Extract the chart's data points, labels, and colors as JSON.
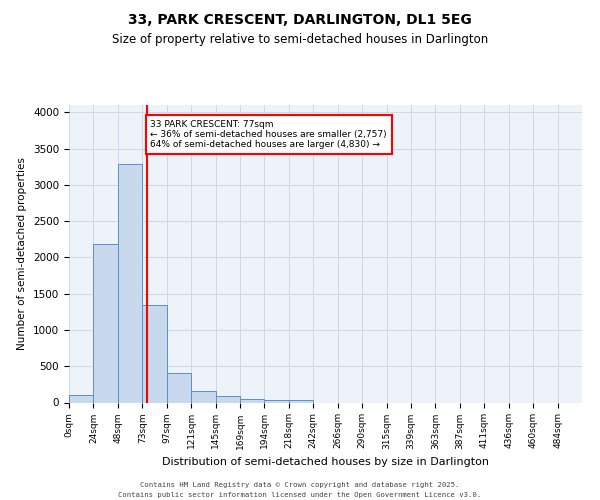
{
  "title_line1": "33, PARK CRESCENT, DARLINGTON, DL1 5EG",
  "title_line2": "Size of property relative to semi-detached houses in Darlington",
  "xlabel": "Distribution of semi-detached houses by size in Darlington",
  "ylabel": "Number of semi-detached properties",
  "bar_labels": [
    "0sqm",
    "24sqm",
    "48sqm",
    "73sqm",
    "97sqm",
    "121sqm",
    "145sqm",
    "169sqm",
    "194sqm",
    "218sqm",
    "242sqm",
    "266sqm",
    "290sqm",
    "315sqm",
    "339sqm",
    "363sqm",
    "387sqm",
    "411sqm",
    "436sqm",
    "460sqm",
    "484sqm"
  ],
  "bar_values": [
    105,
    2180,
    3290,
    1340,
    410,
    155,
    95,
    50,
    40,
    30,
    0,
    0,
    0,
    0,
    0,
    0,
    0,
    0,
    0,
    0,
    0
  ],
  "bar_color": "#c9d9ed",
  "bar_edge_color": "#5b8fc9",
  "grid_color": "#d0d8e8",
  "background_color": "#eef2f9",
  "red_line_x": 77,
  "annotation_text": "33 PARK CRESCENT: 77sqm\n← 36% of semi-detached houses are smaller (2,757)\n64% of semi-detached houses are larger (4,830) →",
  "annotation_box_color": "white",
  "annotation_box_edge": "red",
  "vline_color": "red",
  "footer_text": "Contains HM Land Registry data © Crown copyright and database right 2025.\nContains public sector information licensed under the Open Government Licence v3.0.",
  "ylim": [
    0,
    4100
  ],
  "bin_width": 24
}
